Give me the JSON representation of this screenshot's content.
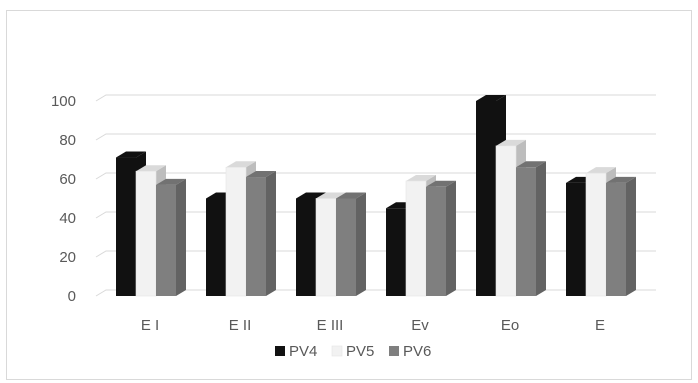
{
  "chart_data": {
    "type": "bar",
    "title": "",
    "xlabel": "",
    "ylabel": "",
    "ylim": [
      0,
      100
    ],
    "yticks": [
      0,
      20,
      40,
      60,
      80,
      100
    ],
    "grid": true,
    "legend_position": "bottom",
    "categories": [
      "E I",
      "E II",
      "E III",
      "Ev",
      "Eo",
      "E"
    ],
    "series": [
      {
        "name": "PV4",
        "color": "#111111",
        "values": [
          71,
          50,
          50,
          45,
          100,
          58
        ]
      },
      {
        "name": "PV5",
        "color": "#f2f2f2",
        "values": [
          64,
          66,
          50,
          59,
          77,
          63
        ]
      },
      {
        "name": "PV6",
        "color": "#7f7f7f",
        "values": [
          57,
          61,
          50,
          56,
          66,
          58
        ]
      }
    ]
  }
}
